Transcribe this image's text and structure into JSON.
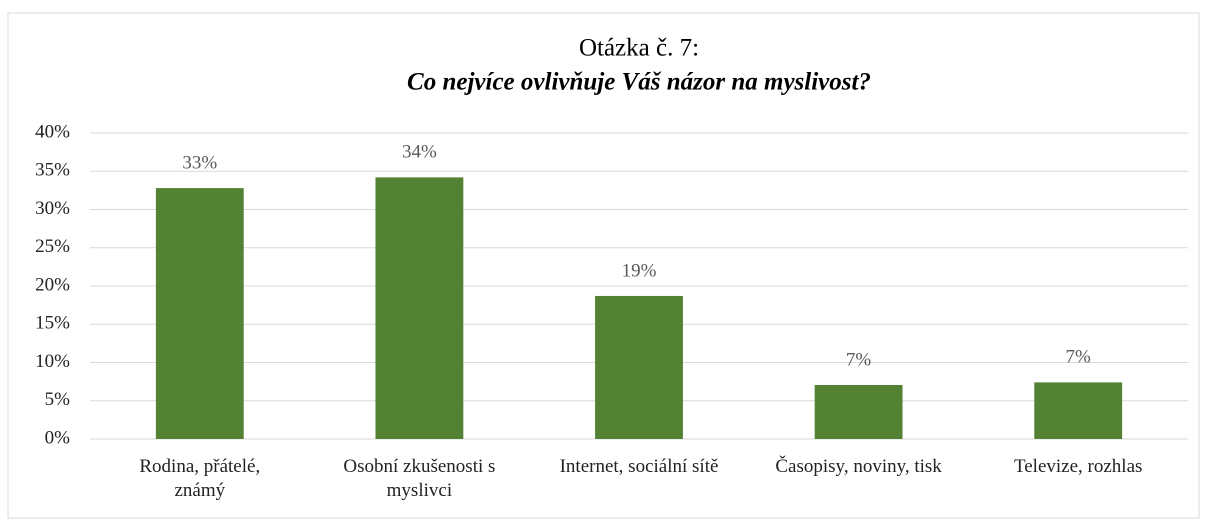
{
  "chart_data": {
    "type": "bar",
    "title": "Otázka č. 7:",
    "subtitle": "Co nejvíce ovlivňuje Váš názor na myslivost?",
    "categories": [
      "Rodina, přátelé,\nznámý",
      "Osobní zkušenosti s\nmyslivci",
      "Internet, sociální sítě",
      "Časopisy, noviny, tisk",
      "Televize, rozhlas"
    ],
    "values": [
      32.8,
      34.2,
      18.7,
      7.06,
      7.4
    ],
    "value_labels": [
      "33%",
      "34%",
      "19%",
      "7%",
      "7%"
    ],
    "color": "#548235",
    "ylim": [
      0,
      40
    ],
    "yticks": [
      {
        "value": 0,
        "label": "0%"
      },
      {
        "value": 5,
        "label": "5%"
      },
      {
        "value": 10,
        "label": "10%"
      },
      {
        "value": 15,
        "label": "15%"
      },
      {
        "value": 20,
        "label": "20%"
      },
      {
        "value": 25,
        "label": "25%"
      },
      {
        "value": 30,
        "label": "30%"
      },
      {
        "value": 35,
        "label": "35%"
      },
      {
        "value": 40,
        "label": "40%"
      }
    ],
    "grid": true
  }
}
